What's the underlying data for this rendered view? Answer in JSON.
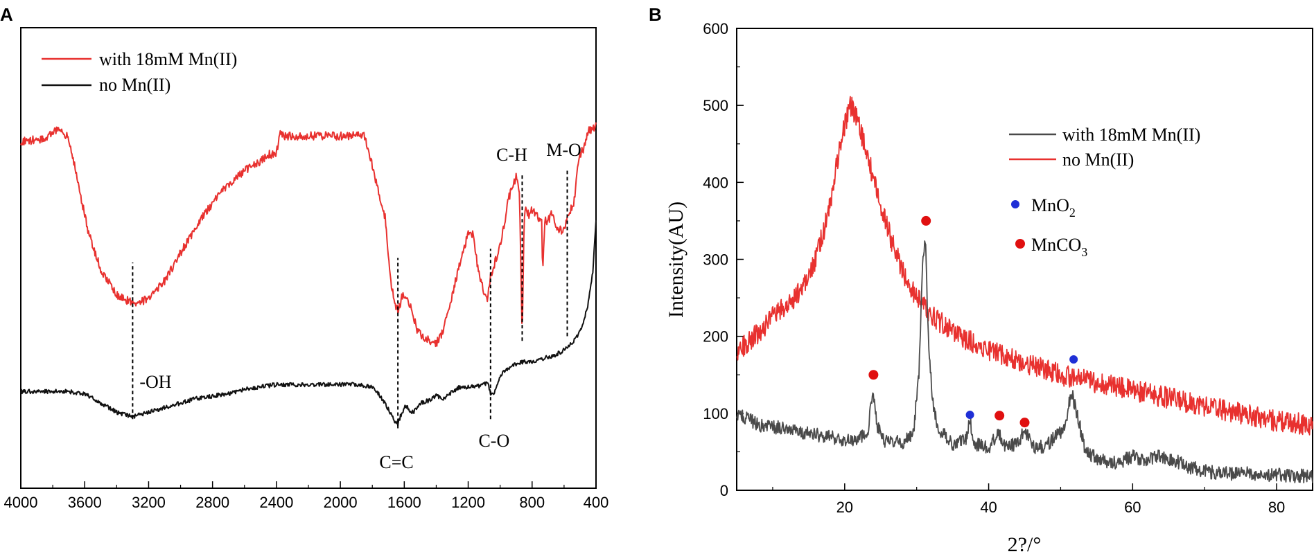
{
  "colors": {
    "red": "#e8312f",
    "black": "#111111",
    "gray": "#4a4a4a",
    "blue": "#1f2fd6",
    "marker_red": "#e01010"
  },
  "chart_data": [
    {
      "panel": "A",
      "type": "line",
      "title": "",
      "xlabel": "",
      "ylabel": "",
      "x_reversed": true,
      "xlim": [
        4000,
        400
      ],
      "ylim": [
        0,
        100
      ],
      "yticks_visible": false,
      "xticks": [
        4000,
        3600,
        3200,
        2800,
        2400,
        2000,
        1600,
        1200,
        800,
        400
      ],
      "xtick_labels": [
        "4000",
        "3600",
        "3200",
        "2800",
        "2400",
        "2000",
        "1600",
        "1200",
        "800",
        "400"
      ],
      "legend": {
        "position": "top-left",
        "entries": [
          {
            "name": "with 18mM Mn(II)",
            "color": "red"
          },
          {
            "name": "no Mn(II)",
            "color": "black"
          }
        ]
      },
      "series": [
        {
          "name": "with 18mM Mn(II)",
          "color": "red",
          "noise": 0.9,
          "x": [
            4000,
            3850,
            3760,
            3700,
            3640,
            3580,
            3500,
            3400,
            3300,
            3200,
            3100,
            3000,
            2900,
            2800,
            2700,
            2600,
            2500,
            2450,
            2400,
            2380,
            2350,
            2300,
            2200,
            2000,
            1850,
            1800,
            1760,
            1720,
            1700,
            1680,
            1660,
            1640,
            1610,
            1580,
            1550,
            1520,
            1480,
            1400,
            1360,
            1300,
            1250,
            1200,
            1170,
            1140,
            1100,
            1080,
            1060,
            1050,
            1040,
            1000,
            970,
            950,
            920,
            900,
            880,
            870,
            862,
            850,
            840,
            820,
            800,
            760,
            740,
            735,
            720,
            700,
            680,
            640,
            620,
            600,
            580,
            560,
            540,
            520,
            500,
            480,
            450,
            420,
            400
          ],
          "y": [
            75.2,
            76,
            78,
            76,
            66,
            56,
            47.5,
            42,
            40.2,
            41,
            45,
            51,
            57,
            62,
            66,
            69,
            71,
            72.5,
            72.5,
            77,
            76.5,
            76.5,
            76.5,
            76.5,
            76.5,
            70,
            64,
            59,
            50,
            44,
            40.5,
            38.5,
            42,
            41.5,
            38,
            34.5,
            32.5,
            31.5,
            34,
            42,
            49,
            55.2,
            55,
            48,
            42,
            41,
            46,
            46.5,
            48,
            53,
            58,
            62.5,
            66,
            67.5,
            65,
            48,
            32,
            58,
            60.5,
            59.5,
            60.5,
            58.5,
            58,
            47,
            58,
            58,
            59.5,
            56.5,
            56,
            56.5,
            58.5,
            60.5,
            61,
            68,
            72.5,
            73.5,
            77.5,
            78,
            79
          ]
        },
        {
          "name": "no Mn(II)",
          "color": "black",
          "noise": 0.45,
          "x": [
            4000,
            3700,
            3600,
            3500,
            3400,
            3300,
            3200,
            3100,
            3000,
            2900,
            2800,
            2700,
            2600,
            2500,
            2400,
            2300,
            2200,
            2100,
            2000,
            1900,
            1800,
            1760,
            1720,
            1690,
            1660,
            1640,
            1620,
            1590,
            1560,
            1540,
            1500,
            1450,
            1400,
            1350,
            1300,
            1250,
            1200,
            1150,
            1100,
            1080,
            1060,
            1040,
            1000,
            950,
            900,
            850,
            800,
            750,
            700,
            650,
            600,
            550,
            500,
            470,
            450,
            420,
            400
          ],
          "y": [
            21,
            21,
            20.5,
            18.5,
            16.5,
            15.5,
            16.5,
            17.5,
            18.5,
            19.5,
            20,
            20.5,
            21.5,
            22,
            22.5,
            22.5,
            22.5,
            22.5,
            22.5,
            22.5,
            22,
            20.5,
            18.5,
            16.5,
            14.5,
            13.8,
            16,
            18,
            16.5,
            16.5,
            18.5,
            19,
            20,
            19.5,
            21,
            22,
            22,
            22,
            22.5,
            23,
            20.5,
            20.5,
            24.5,
            26,
            27,
            27.5,
            27.5,
            28,
            28.5,
            29,
            30,
            31.5,
            34,
            37,
            40,
            47,
            58
          ]
        }
      ],
      "annotations": [
        {
          "label": "-OH",
          "x": 3300,
          "line_from": 15,
          "line_to": 49
        },
        {
          "label": "C=C",
          "x": 1640,
          "line_from": 13,
          "line_to": 50
        },
        {
          "label": "C-O",
          "x": 1060,
          "line_from": 15,
          "line_to": 52
        },
        {
          "label": "C-H",
          "x": 862,
          "line_from": 32,
          "line_to": 68
        },
        {
          "label": "M-O",
          "x": 580,
          "line_from": 33,
          "line_to": 69
        }
      ]
    },
    {
      "panel": "B",
      "type": "line",
      "title": "",
      "xlabel": "2?/°",
      "ylabel": "Intensity(AU)",
      "xlim": [
        5,
        85
      ],
      "ylim": [
        0,
        600
      ],
      "xticks": [
        20,
        40,
        60,
        80
      ],
      "xtick_labels": [
        "20",
        "40",
        "60",
        "80"
      ],
      "yticks": [
        0,
        100,
        200,
        300,
        400,
        500,
        600
      ],
      "ytick_labels": [
        "0",
        "100",
        "200",
        "300",
        "400",
        "500",
        "600"
      ],
      "legend": {
        "position": "top-right",
        "entries": [
          {
            "name": "with 18mM Mn(II)",
            "color": "gray"
          },
          {
            "name": "no Mn(II)",
            "color": "red"
          }
        ]
      },
      "marker_legend": [
        {
          "name": "MnO",
          "subscript": "2",
          "color": "blue"
        },
        {
          "name": "MnCO",
          "subscript": "3",
          "color": "marker_red"
        }
      ],
      "series": [
        {
          "name": "no Mn(II)",
          "color": "red",
          "noise": 14,
          "x": [
            5,
            8,
            10,
            12,
            14,
            16,
            18,
            19,
            20,
            20.8,
            21.5,
            23,
            25,
            27,
            29,
            31,
            33,
            36,
            40,
            45,
            50,
            55,
            60,
            65,
            70,
            75,
            80,
            85
          ],
          "y": [
            180,
            205,
            225,
            240,
            262,
            300,
            370,
            430,
            475,
            500,
            488,
            440,
            370,
            310,
            265,
            240,
            220,
            200,
            183,
            165,
            150,
            140,
            130,
            120,
            110,
            100,
            90,
            85
          ]
        },
        {
          "name": "with 18mM Mn(II)",
          "color": "gray",
          "noise": 9,
          "x": [
            5,
            8,
            12,
            16,
            20,
            22,
            23.3,
            23.9,
            24.5,
            25.5,
            28,
            29.5,
            30.3,
            30.8,
            31.2,
            31.6,
            32.2,
            33,
            35,
            36.8,
            37.4,
            38,
            40,
            41.3,
            42.2,
            44,
            45.1,
            46,
            48,
            50.5,
            51.5,
            52.5,
            53.5,
            56,
            58,
            60,
            62,
            64,
            66,
            68,
            70,
            72,
            75,
            80,
            85
          ],
          "y": [
            100,
            85,
            80,
            72,
            66,
            66,
            80,
            130,
            85,
            65,
            62,
            70,
            150,
            290,
            330,
            200,
            115,
            80,
            60,
            65,
            92,
            60,
            55,
            75,
            58,
            60,
            80,
            55,
            58,
            80,
            130,
            90,
            48,
            38,
            35,
            45,
            38,
            45,
            38,
            30,
            25,
            22,
            22,
            20,
            18
          ]
        }
      ],
      "markers": [
        {
          "type": "MnCO3",
          "x": 24,
          "y": 150
        },
        {
          "type": "MnCO3",
          "x": 31.3,
          "y": 350
        },
        {
          "type": "MnO2",
          "x": 37.4,
          "y": 98
        },
        {
          "type": "MnCO3",
          "x": 41.5,
          "y": 97
        },
        {
          "type": "MnCO3",
          "x": 45,
          "y": 88
        },
        {
          "type": "MnO2",
          "x": 51.8,
          "y": 170
        }
      ]
    }
  ]
}
